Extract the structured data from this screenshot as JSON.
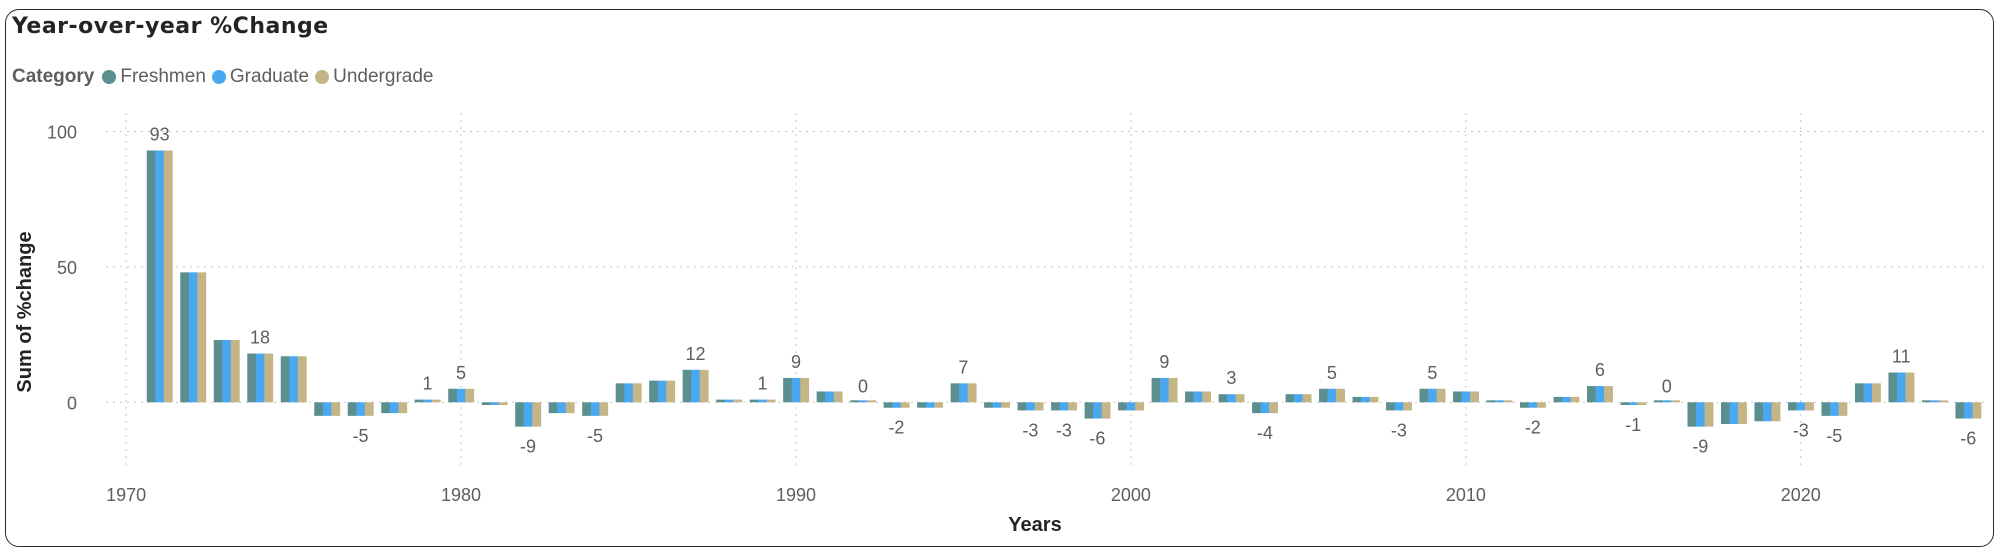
{
  "title": "Year-over-year %Change",
  "legend": {
    "title": "Category",
    "items": [
      {
        "label": "Freshmen",
        "color": "#5b8e8e"
      },
      {
        "label": "Graduate",
        "color": "#4aa8f0"
      },
      {
        "label": "Undergrade",
        "color": "#c4b486"
      }
    ]
  },
  "chart_data": {
    "type": "bar",
    "title": "Year-over-year %Change",
    "xlabel": "Years",
    "ylabel": "Sum of %change",
    "xlim": [
      1969.4,
      2025.5
    ],
    "ylim": [
      -25,
      105
    ],
    "xticks": [
      1970,
      1980,
      1990,
      2000,
      2010,
      2020
    ],
    "yticks": [
      0,
      50,
      100
    ],
    "grid": true,
    "legend_position": "top-left",
    "categories": [
      1971,
      1972,
      1973,
      1974,
      1975,
      1976,
      1977,
      1978,
      1979,
      1980,
      1981,
      1982,
      1983,
      1984,
      1985,
      1986,
      1987,
      1988,
      1989,
      1990,
      1991,
      1992,
      1993,
      1994,
      1995,
      1996,
      1997,
      1998,
      1999,
      2000,
      2001,
      2002,
      2003,
      2004,
      2005,
      2006,
      2007,
      2008,
      2009,
      2010,
      2011,
      2012,
      2013,
      2014,
      2015,
      2016,
      2017,
      2018,
      2019,
      2020,
      2021,
      2022,
      2023,
      2024,
      2025
    ],
    "series": [
      {
        "name": "Freshmen",
        "values": [
          93,
          48,
          23,
          18,
          17,
          -5,
          -5,
          -4,
          1,
          5,
          -1,
          -9,
          -4,
          -5,
          7,
          8,
          12,
          1,
          1,
          9,
          4,
          0,
          -2,
          -2,
          7,
          -2,
          -3,
          -3,
          -6,
          -3,
          9,
          4,
          3,
          -4,
          3,
          5,
          2,
          -3,
          5,
          4,
          0,
          -2,
          2,
          6,
          -1,
          0,
          -9,
          -8,
          -7,
          -3,
          -5,
          7,
          11,
          0,
          -6
        ]
      },
      {
        "name": "Graduate",
        "values": [
          93,
          48,
          23,
          18,
          17,
          -5,
          -5,
          -4,
          1,
          5,
          -1,
          -9,
          -4,
          -5,
          7,
          8,
          12,
          1,
          1,
          9,
          4,
          0,
          -2,
          -2,
          7,
          -2,
          -3,
          -3,
          -6,
          -3,
          9,
          4,
          3,
          -4,
          3,
          5,
          2,
          -3,
          5,
          4,
          0,
          -2,
          2,
          6,
          -1,
          0,
          -9,
          -8,
          -7,
          -3,
          -5,
          7,
          11,
          0,
          -6
        ]
      },
      {
        "name": "Undergrade",
        "values": [
          93,
          48,
          23,
          18,
          17,
          -5,
          -5,
          -4,
          1,
          5,
          -1,
          -9,
          -4,
          -5,
          7,
          8,
          12,
          1,
          1,
          9,
          4,
          0,
          -2,
          -2,
          7,
          -2,
          -3,
          -3,
          -6,
          -3,
          9,
          4,
          3,
          -4,
          3,
          5,
          2,
          -3,
          5,
          4,
          0,
          -2,
          2,
          6,
          -1,
          0,
          -9,
          -8,
          -7,
          -3,
          -5,
          7,
          11,
          0,
          -6
        ]
      }
    ],
    "data_labels": [
      {
        "x": 1971,
        "text": "93"
      },
      {
        "x": 1974,
        "text": "18"
      },
      {
        "x": 1977,
        "text": "-5"
      },
      {
        "x": 1979,
        "text": "1"
      },
      {
        "x": 1980,
        "text": "5"
      },
      {
        "x": 1982,
        "text": "-9"
      },
      {
        "x": 1984,
        "text": "-5"
      },
      {
        "x": 1987,
        "text": "12"
      },
      {
        "x": 1989,
        "text": "1"
      },
      {
        "x": 1990,
        "text": "9"
      },
      {
        "x": 1992,
        "text": "0"
      },
      {
        "x": 1993,
        "text": "-2"
      },
      {
        "x": 1995,
        "text": "7"
      },
      {
        "x": 1997,
        "text": "-3"
      },
      {
        "x": 1998,
        "text": "-3"
      },
      {
        "x": 1999,
        "text": "-6"
      },
      {
        "x": 2001,
        "text": "9"
      },
      {
        "x": 2003,
        "text": "3"
      },
      {
        "x": 2004,
        "text": "-4"
      },
      {
        "x": 2006,
        "text": "5"
      },
      {
        "x": 2008,
        "text": "-3"
      },
      {
        "x": 2009,
        "text": "5"
      },
      {
        "x": 2012,
        "text": "-2"
      },
      {
        "x": 2014,
        "text": "6"
      },
      {
        "x": 2015,
        "text": "-1"
      },
      {
        "x": 2016,
        "text": "0"
      },
      {
        "x": 2017,
        "text": "-9"
      },
      {
        "x": 2020,
        "text": "-3"
      },
      {
        "x": 2021,
        "text": "-5"
      },
      {
        "x": 2023,
        "text": "11"
      },
      {
        "x": 2025,
        "text": "-6"
      }
    ]
  }
}
